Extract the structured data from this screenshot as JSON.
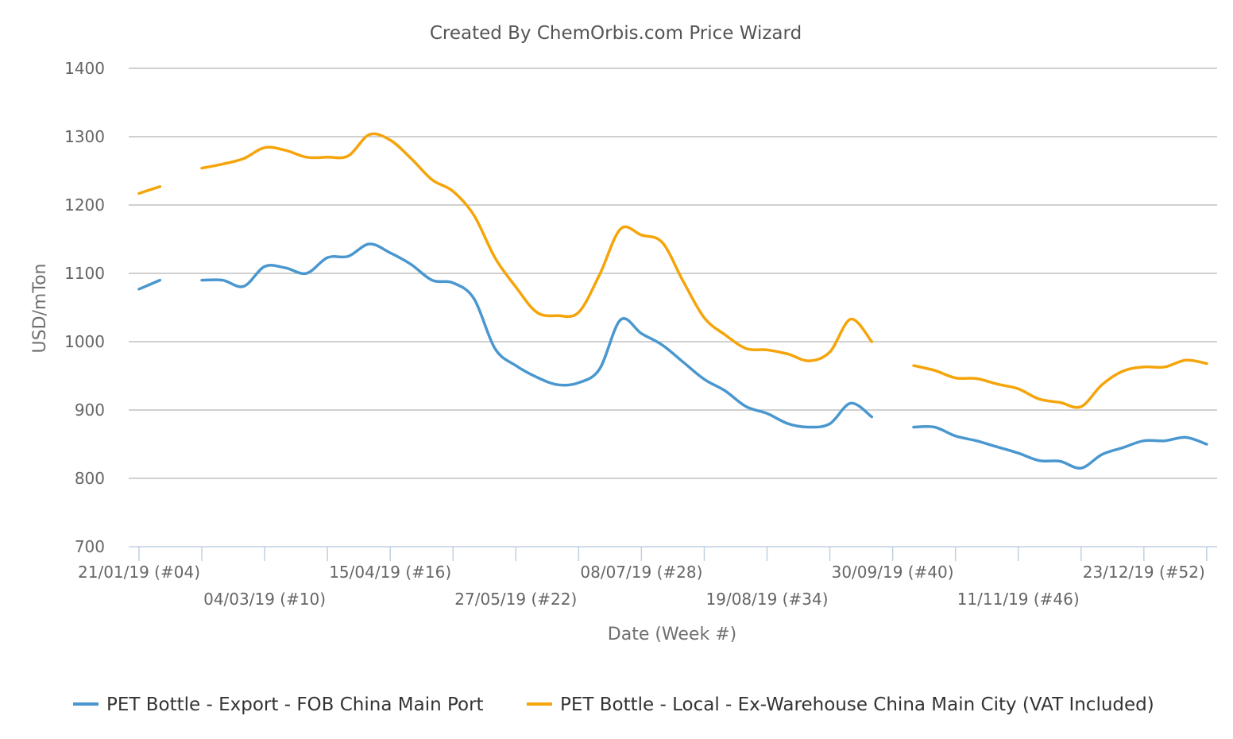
{
  "chart_data": {
    "type": "line",
    "title": "Created By ChemOrbis.com Price Wizard",
    "xlabel": "Date (Week #)",
    "ylabel": "USD/mTon",
    "ylim": [
      700,
      1400
    ],
    "yticks": [
      700,
      800,
      900,
      1000,
      1100,
      1200,
      1300,
      1400
    ],
    "grid": true,
    "legend_position": "bottom",
    "x_tick_weeks": [
      4,
      10,
      16,
      22,
      28,
      34,
      40,
      46,
      52
    ],
    "x_tick_labels": [
      "21/01/19 (#04)",
      "04/03/19 (#10)",
      "15/04/19 (#16)",
      "27/05/19 (#22)",
      "08/07/19 (#28)",
      "19/08/19 (#34)",
      "30/09/19 (#40)",
      "11/11/19 (#46)",
      "23/12/19 (#52)"
    ],
    "series": [
      {
        "name": "PET Bottle - Export - FOB China Main Port",
        "color": "#4a97d0",
        "points": [
          [
            4,
            1077
          ],
          [
            5,
            1090
          ],
          [
            6,
            null
          ],
          [
            7,
            1090
          ],
          [
            8,
            1090
          ],
          [
            9,
            1081
          ],
          [
            10,
            1110
          ],
          [
            11,
            1108
          ],
          [
            12,
            1100
          ],
          [
            13,
            1123
          ],
          [
            14,
            1125
          ],
          [
            15,
            1143
          ],
          [
            16,
            1130
          ],
          [
            17,
            1113
          ],
          [
            18,
            1090
          ],
          [
            19,
            1086
          ],
          [
            20,
            1063
          ],
          [
            21,
            990
          ],
          [
            22,
            965
          ],
          [
            23,
            948
          ],
          [
            24,
            937
          ],
          [
            25,
            940
          ],
          [
            26,
            960
          ],
          [
            27,
            1032
          ],
          [
            28,
            1012
          ],
          [
            29,
            995
          ],
          [
            30,
            970
          ],
          [
            31,
            945
          ],
          [
            32,
            928
          ],
          [
            33,
            905
          ],
          [
            34,
            895
          ],
          [
            35,
            880
          ],
          [
            36,
            875
          ],
          [
            37,
            880
          ],
          [
            38,
            910
          ],
          [
            39,
            890
          ],
          [
            40,
            null
          ],
          [
            41,
            875
          ],
          [
            42,
            875
          ],
          [
            43,
            862
          ],
          [
            44,
            855
          ],
          [
            45,
            846
          ],
          [
            46,
            837
          ],
          [
            47,
            826
          ],
          [
            48,
            825
          ],
          [
            49,
            815
          ],
          [
            50,
            835
          ],
          [
            51,
            845
          ],
          [
            52,
            855
          ],
          [
            53,
            855
          ],
          [
            54,
            860
          ],
          [
            55,
            850
          ]
        ]
      },
      {
        "name": "PET Bottle - Local - Ex-Warehouse China Main City (VAT Included)",
        "color": "#f5a40a",
        "points": [
          [
            4,
            1217
          ],
          [
            5,
            1227
          ],
          [
            6,
            null
          ],
          [
            7,
            1254
          ],
          [
            8,
            1260
          ],
          [
            9,
            1268
          ],
          [
            10,
            1284
          ],
          [
            11,
            1280
          ],
          [
            12,
            1270
          ],
          [
            13,
            1270
          ],
          [
            14,
            1272
          ],
          [
            15,
            1303
          ],
          [
            16,
            1295
          ],
          [
            17,
            1268
          ],
          [
            18,
            1237
          ],
          [
            19,
            1220
          ],
          [
            20,
            1185
          ],
          [
            21,
            1123
          ],
          [
            22,
            1080
          ],
          [
            23,
            1043
          ],
          [
            24,
            1038
          ],
          [
            25,
            1043
          ],
          [
            26,
            1098
          ],
          [
            27,
            1165
          ],
          [
            28,
            1156
          ],
          [
            29,
            1145
          ],
          [
            30,
            1088
          ],
          [
            31,
            1035
          ],
          [
            32,
            1010
          ],
          [
            33,
            990
          ],
          [
            34,
            988
          ],
          [
            35,
            982
          ],
          [
            36,
            972
          ],
          [
            37,
            985
          ],
          [
            38,
            1033
          ],
          [
            39,
            1000
          ],
          [
            40,
            null
          ],
          [
            41,
            965
          ],
          [
            42,
            958
          ],
          [
            43,
            947
          ],
          [
            44,
            946
          ],
          [
            45,
            938
          ],
          [
            46,
            931
          ],
          [
            47,
            916
          ],
          [
            48,
            911
          ],
          [
            49,
            905
          ],
          [
            50,
            937
          ],
          [
            51,
            957
          ],
          [
            52,
            963
          ],
          [
            53,
            963
          ],
          [
            54,
            973
          ],
          [
            55,
            968
          ]
        ]
      }
    ]
  }
}
